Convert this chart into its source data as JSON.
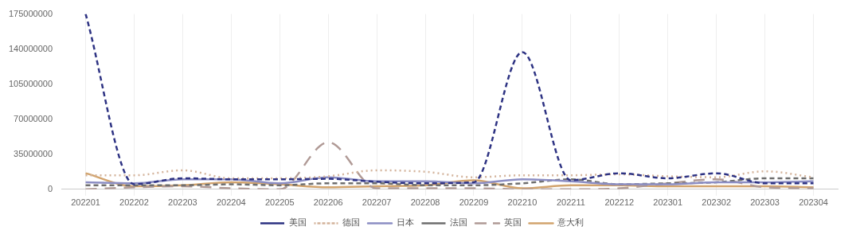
{
  "chart_data": {
    "type": "line",
    "categories": [
      "202201",
      "202202",
      "202203",
      "202204",
      "202205",
      "202206",
      "202207",
      "202208",
      "202209",
      "202210",
      "202211",
      "202212",
      "202301",
      "202302",
      "202303",
      "202304"
    ],
    "series": [
      {
        "name": "美国",
        "color": "#2e3383",
        "line_style": "dashed",
        "values": [
          175000000,
          5000000,
          11000000,
          10000000,
          10000000,
          10500000,
          7500000,
          6000000,
          7000000,
          137000000,
          9000000,
          16000000,
          11000000,
          16000000,
          6000000,
          6000000
        ]
      },
      {
        "name": "德国",
        "color": "#d4b49c",
        "line_style": "dotted",
        "values": [
          14000000,
          14000000,
          19000000,
          11000000,
          11000000,
          13000000,
          19000000,
          17500000,
          12000000,
          14000000,
          14000000,
          15000000,
          13000000,
          12000000,
          18000000,
          12000000
        ]
      },
      {
        "name": "日本",
        "color": "#8c8ec4",
        "line_style": "solid",
        "values": [
          7000000,
          6000000,
          10000000,
          10000000,
          6000000,
          12000000,
          8000000,
          8000000,
          6000000,
          10000000,
          8000000,
          5000000,
          5000000,
          7000000,
          7000000,
          8000000
        ]
      },
      {
        "name": "法国",
        "color": "#6e6e6e",
        "line_style": "dashed",
        "values": [
          4000000,
          4000000,
          4000000,
          5000000,
          4000000,
          6000000,
          6000000,
          4000000,
          4000000,
          6000000,
          10000000,
          5000000,
          6000000,
          7000000,
          11000000,
          11000000
        ]
      },
      {
        "name": "英国",
        "color": "#b09a96",
        "line_style": "longdash",
        "values": [
          0,
          2000000,
          3000000,
          1000000,
          0,
          47000000,
          1000000,
          1000000,
          1000000,
          0,
          0,
          1000000,
          6000000,
          10000000,
          2000000,
          1000000
        ]
      },
      {
        "name": "意大利",
        "color": "#d2a46e",
        "line_style": "solid",
        "values": [
          16000000,
          3000000,
          4000000,
          7000000,
          5000000,
          2000000,
          3000000,
          4000000,
          9000000,
          1000000,
          4000000,
          4000000,
          3000000,
          3000000,
          3000000,
          2000000
        ]
      }
    ],
    "ylim": [
      0,
      175000000
    ],
    "yticks": [
      0,
      35000000,
      70000000,
      105000000,
      140000000,
      175000000
    ],
    "grid": "x",
    "legend": "bottom",
    "marker": "none"
  }
}
